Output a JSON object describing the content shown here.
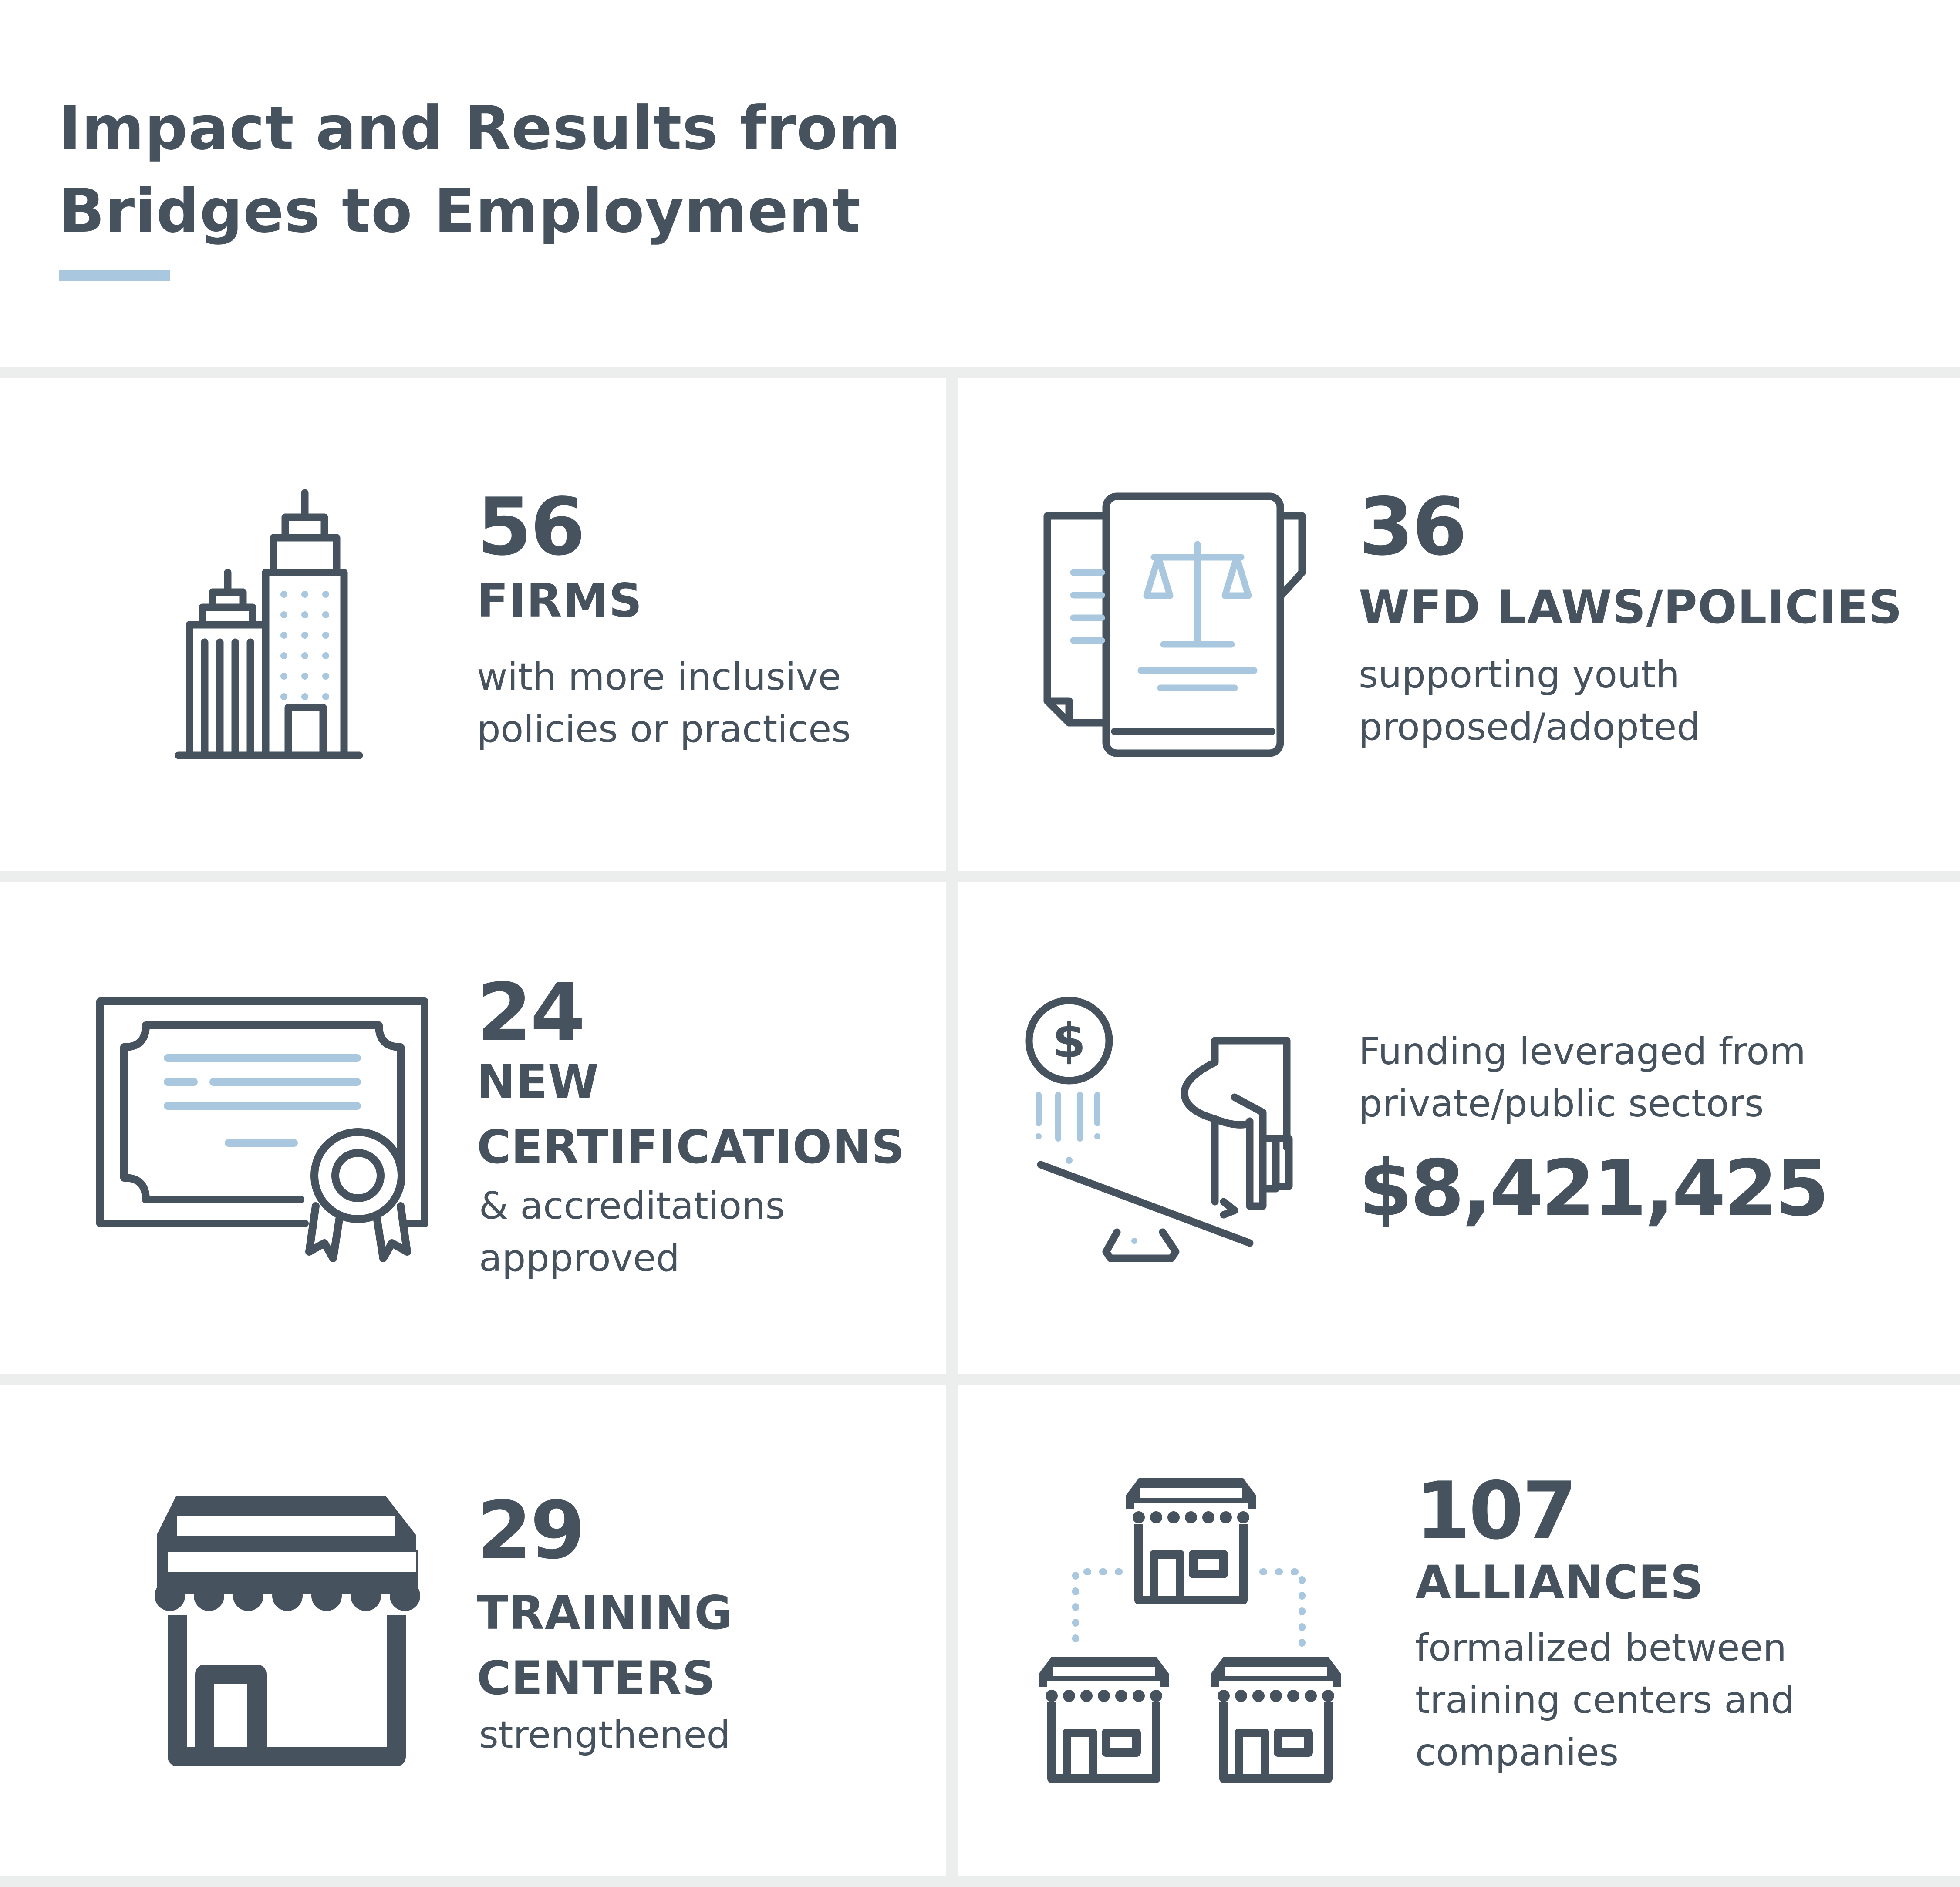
{
  "title": {
    "line1": "Impact and Results from",
    "line2": "Bridges to Employment"
  },
  "colors": {
    "text": "#46535f",
    "accent": "#a9c8df",
    "divider": "#eceded"
  },
  "metrics": {
    "firms": {
      "icon": "office-buildings-icon",
      "value": "56",
      "label": "FIRMS",
      "desc1": "with more inclusive",
      "desc2": "policies or practices"
    },
    "laws": {
      "icon": "law-book-icon",
      "value": "36",
      "label": "WFD LAWS/POLICIES",
      "desc1": "supporting youth",
      "desc2": "proposed/adopted"
    },
    "certs": {
      "icon": "certificate-icon",
      "value": "24",
      "label1": "NEW",
      "label2": "CERTIFICATIONS",
      "desc1": "& accreditations",
      "desc2": "appproved"
    },
    "funding": {
      "icon": "leverage-funding-icon",
      "desc1": "Funding leveraged from",
      "desc2": "private/public sectors",
      "value": "$8,421,425"
    },
    "training": {
      "icon": "storefront-icon",
      "value": "29",
      "label1": "TRAINING",
      "label2": "CENTERS",
      "desc1": "strengthened"
    },
    "alliances": {
      "icon": "connected-stores-icon",
      "value": "107",
      "label": "ALLIANCES",
      "desc1": "formalized between",
      "desc2": "training centers and",
      "desc3": "companies"
    }
  }
}
